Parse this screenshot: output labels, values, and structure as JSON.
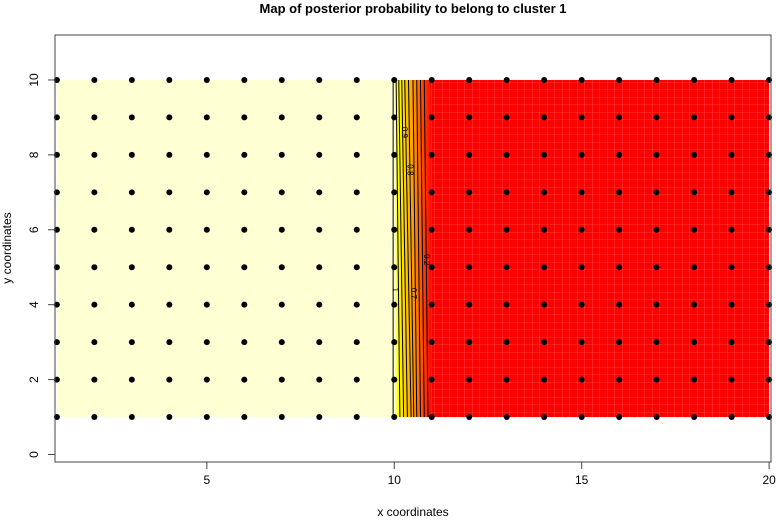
{
  "chart_data": {
    "type": "heatmap",
    "title": "Map of posterior probability to belong to cluster  1",
    "xlabel": "x coordinates",
    "ylabel": "y coordinates",
    "xlim": [
      0.95,
      20.05
    ],
    "ylim": [
      -0.2,
      11.2
    ],
    "xticks": [
      5,
      10,
      15,
      20
    ],
    "yticks": [
      0,
      2,
      4,
      6,
      8,
      10
    ],
    "grid_points": {
      "x_from": 1,
      "x_to": 20,
      "y_from": 1,
      "y_to": 10,
      "step": 1
    },
    "probability_region": {
      "value_left_of_x": 10,
      "left_value": 1,
      "right_value": 0,
      "transition": [
        10,
        11
      ]
    },
    "colors": {
      "high": "#FFFFD4",
      "mid1": "#FFFF00",
      "mid2": "#FF8C00",
      "low": "#FF0000",
      "points": "#000000",
      "contour": "#000000"
    },
    "contours": [
      {
        "level": "1",
        "x_bottom": 9.97,
        "x_top": 9.97
      },
      {
        "level": "0.9",
        "x_bottom": 10.15,
        "x_top": 10.05
      },
      {
        "level": "0.8",
        "x_bottom": 10.25,
        "x_top": 10.12
      },
      {
        "level": "0.7",
        "x_bottom": 10.35,
        "x_top": 10.2
      },
      {
        "level": "0.6",
        "x_bottom": 10.45,
        "x_top": 10.28
      },
      {
        "level": "0.5",
        "x_bottom": 10.52,
        "x_top": 10.38
      },
      {
        "level": "0.4",
        "x_bottom": 10.6,
        "x_top": 10.5
      },
      {
        "level": "0.3",
        "x_bottom": 10.7,
        "x_top": 10.6
      },
      {
        "level": "0.2",
        "x_bottom": 10.8,
        "x_top": 10.7
      },
      {
        "level": "0.1",
        "x_bottom": 10.9,
        "x_top": 10.8
      }
    ],
    "contour_labels": [
      {
        "text": "1",
        "x": 9.97,
        "y": 4.4
      },
      {
        "text": "0.9",
        "x": 10.2,
        "y": 8.6
      },
      {
        "text": "0.8",
        "x": 10.35,
        "y": 7.6
      },
      {
        "text": "0.7",
        "x": 10.45,
        "y": 4.3
      },
      {
        "text": "0.2",
        "x": 10.8,
        "y": 5.2
      }
    ]
  }
}
